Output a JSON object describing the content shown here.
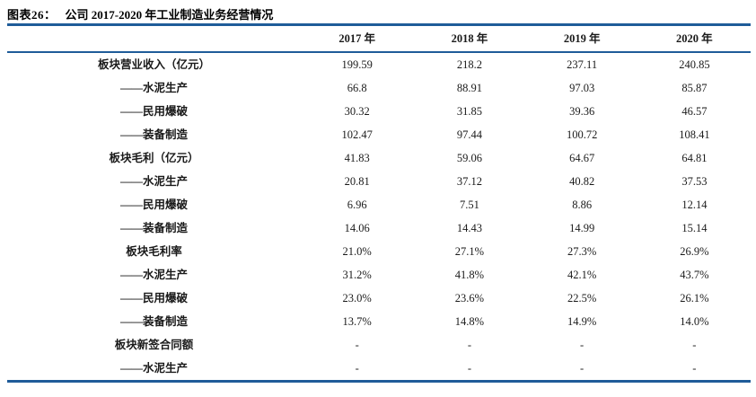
{
  "title": {
    "prefix": "图表26：",
    "text": "公司 2017-2020 年工业制造业务经营情况"
  },
  "colors": {
    "rule_blue": "#1F5C99",
    "text": "#1a1a1a"
  },
  "table": {
    "header": [
      "",
      "2017 年",
      "2018 年",
      "2019 年",
      "2020 年"
    ],
    "rows": [
      {
        "label": "板块营业收入（亿元）",
        "values": [
          "199.59",
          "218.2",
          "237.11",
          "240.85"
        ]
      },
      {
        "label": "——水泥生产",
        "values": [
          "66.8",
          "88.91",
          "97.03",
          "85.87"
        ]
      },
      {
        "label": "——民用爆破",
        "values": [
          "30.32",
          "31.85",
          "39.36",
          "46.57"
        ]
      },
      {
        "label": "——装备制造",
        "values": [
          "102.47",
          "97.44",
          "100.72",
          "108.41"
        ]
      },
      {
        "label": "板块毛利（亿元）",
        "values": [
          "41.83",
          "59.06",
          "64.67",
          "64.81"
        ]
      },
      {
        "label": "——水泥生产",
        "values": [
          "20.81",
          "37.12",
          "40.82",
          "37.53"
        ]
      },
      {
        "label": "——民用爆破",
        "values": [
          "6.96",
          "7.51",
          "8.86",
          "12.14"
        ]
      },
      {
        "label": "——装备制造",
        "values": [
          "14.06",
          "14.43",
          "14.99",
          "15.14"
        ]
      },
      {
        "label": "板块毛利率",
        "values": [
          "21.0%",
          "27.1%",
          "27.3%",
          "26.9%"
        ]
      },
      {
        "label": "——水泥生产",
        "values": [
          "31.2%",
          "41.8%",
          "42.1%",
          "43.7%"
        ]
      },
      {
        "label": "——民用爆破",
        "values": [
          "23.0%",
          "23.6%",
          "22.5%",
          "26.1%"
        ]
      },
      {
        "label": "——装备制造",
        "values": [
          "13.7%",
          "14.8%",
          "14.9%",
          "14.0%"
        ]
      },
      {
        "label": "板块新签合同额",
        "values": [
          "-",
          "-",
          "-",
          "-"
        ]
      },
      {
        "label": "——水泥生产",
        "values": [
          "-",
          "-",
          "-",
          "-"
        ]
      }
    ]
  }
}
